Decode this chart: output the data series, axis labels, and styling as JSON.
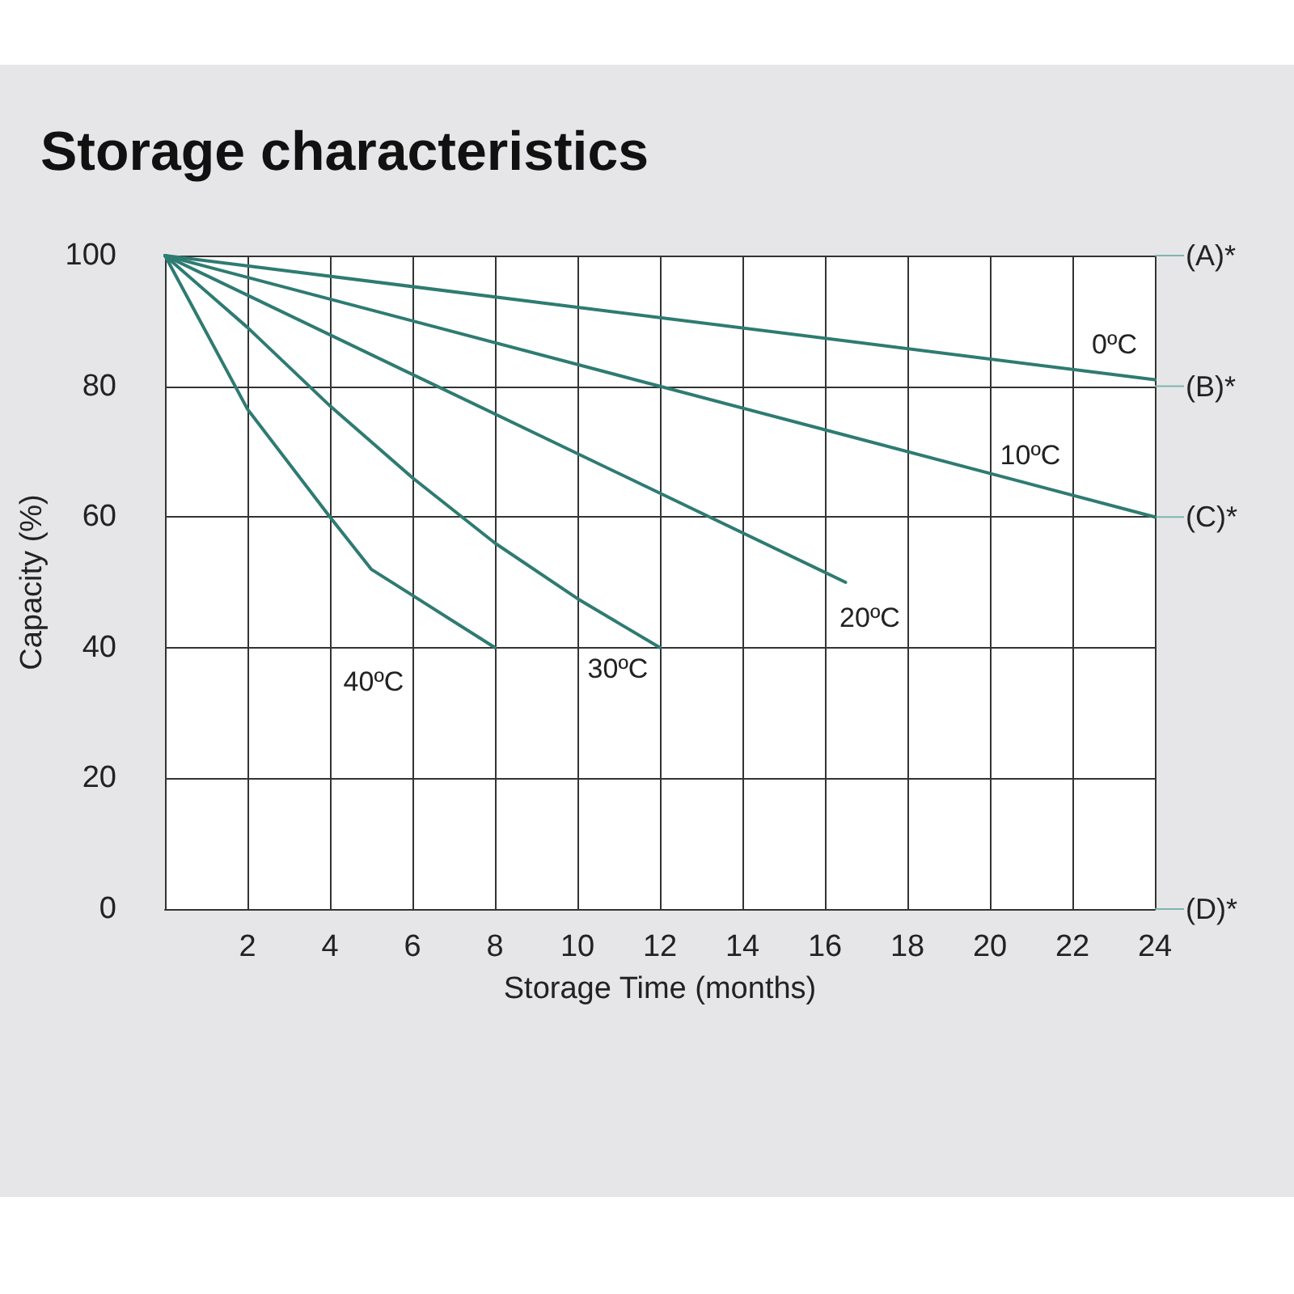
{
  "chart_data": {
    "type": "line",
    "title": "Storage characteristics",
    "xlabel": "Storage Time (months)",
    "ylabel": "Capacity (%)",
    "xlim": [
      0,
      24
    ],
    "xticks": [
      2,
      4,
      6,
      8,
      10,
      12,
      14,
      16,
      18,
      20,
      22,
      24
    ],
    "ref_lines": [
      {
        "axis": "y",
        "value": 100,
        "label": "(A)*"
      },
      {
        "axis": "y",
        "value": 80,
        "label": "(B)*"
      },
      {
        "axis": "y",
        "value": 60,
        "label": "(C)*"
      },
      {
        "axis": "y",
        "value": 0,
        "label": "(D)*"
      }
    ],
    "ylim": [
      0,
      100
    ],
    "yticks": [
      0,
      20,
      40,
      60,
      80,
      100
    ],
    "grid": true,
    "legend": false,
    "marker": "none",
    "line_style": "solid",
    "series": [
      {
        "name": "0ºC",
        "color": "#2e7b72",
        "x": [
          0,
          24
        ],
        "values": [
          100,
          81
        ]
      },
      {
        "name": "10ºC",
        "color": "#2e7b72",
        "x": [
          0,
          24
        ],
        "values": [
          100,
          60
        ]
      },
      {
        "name": "20ºC",
        "color": "#2e7b72",
        "x": [
          0,
          16.5
        ],
        "values": [
          100,
          50
        ]
      },
      {
        "name": "30ºC",
        "color": "#2e7b72",
        "x": [
          0,
          2,
          4,
          6,
          8,
          10,
          12
        ],
        "values": [
          100,
          89,
          77,
          66,
          56,
          47.5,
          40
        ]
      },
      {
        "name": "40ºC",
        "color": "#2e7b72",
        "x": [
          0,
          2,
          4,
          5,
          6,
          8
        ],
        "values": [
          100,
          76.5,
          60,
          52,
          48,
          40
        ]
      }
    ]
  }
}
